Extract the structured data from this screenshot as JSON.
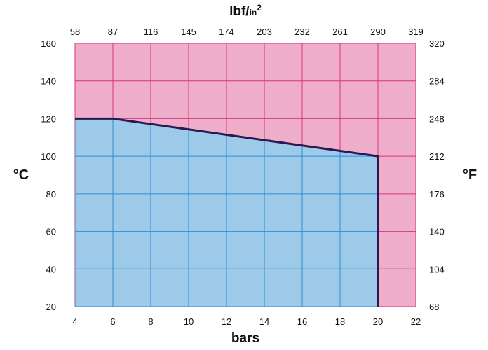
{
  "chart_data": {
    "type": "area",
    "title": "",
    "x_bottom": {
      "label": "bars",
      "ticks": [
        "4",
        "6",
        "8",
        "10",
        "12",
        "14",
        "16",
        "18",
        "20",
        "22"
      ],
      "range": [
        4,
        22
      ]
    },
    "x_top": {
      "label_main": "lbf/",
      "label_sub": "in",
      "label_sup": "2",
      "ticks": [
        "58",
        "87",
        "116",
        "145",
        "174",
        "203",
        "232",
        "261",
        "290",
        "319"
      ]
    },
    "y_left": {
      "label": "°C",
      "ticks": [
        "20",
        "40",
        "60",
        "80",
        "100",
        "120",
        "140",
        "160"
      ],
      "range": [
        20,
        160
      ]
    },
    "y_right": {
      "label": "°F",
      "ticks": [
        "68",
        "104",
        "140",
        "176",
        "212",
        "248",
        "284",
        "320"
      ]
    },
    "grid": true,
    "series": [
      {
        "values": [
          {
            "x": 4,
            "y": 120
          },
          {
            "x": 6,
            "y": 120
          },
          {
            "x": 20,
            "y": 100
          },
          {
            "x": 20,
            "y": 20
          }
        ]
      }
    ],
    "colors": {
      "inside": "#9ecaea",
      "outside": "#eeadc9",
      "grid_inside": "#2a8fd6",
      "grid_outside": "#d8357d",
      "boundary": "#2a1850"
    }
  }
}
